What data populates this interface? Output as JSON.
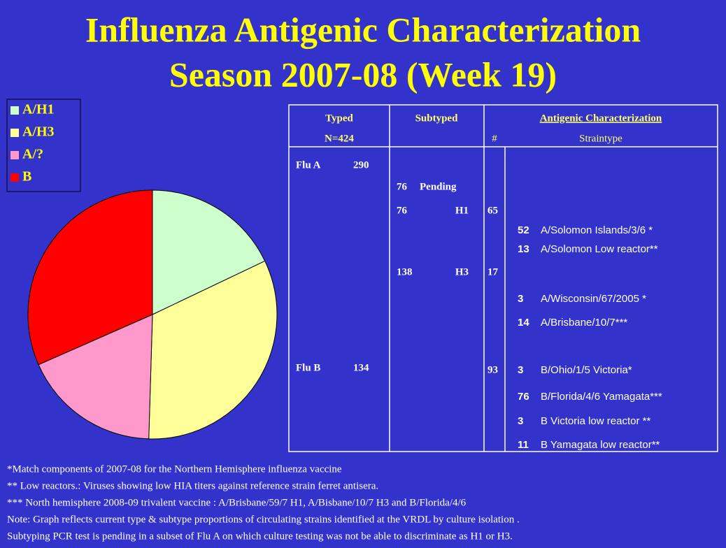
{
  "chart_data": {
    "type": "pie",
    "title": [
      "Influenza Antigenic Characterization",
      "Season 2007-08 (Week 19)"
    ],
    "categories": [
      "A/H1",
      "A/H3",
      "A/?",
      "B"
    ],
    "values": [
      76,
      138,
      76,
      134
    ],
    "colors": [
      "#ccffcc",
      "#ffff99",
      "#ff99cc",
      "#ff0000"
    ]
  },
  "table": {
    "header": {
      "typed": "Typed",
      "n": "N=424",
      "subtyped": "Subtyped",
      "antigenic": "Antigenic Characterization",
      "count": "#",
      "straintype": "Straintype"
    },
    "typed": [
      {
        "label": "Flu A",
        "count": 290
      },
      {
        "label": "Flu B",
        "count": 134
      }
    ],
    "subtyped": [
      {
        "count": 76,
        "label": "Pending"
      },
      {
        "count": 76,
        "label": "H1"
      },
      {
        "count": 138,
        "label": "H3"
      }
    ],
    "characterized": [
      65,
      17,
      93
    ],
    "strains": [
      {
        "count": 52,
        "label": "A/Solomon Islands/3/6 *"
      },
      {
        "count": 13,
        "label": "A/Solomon Low reactor**"
      },
      {
        "count": 3,
        "label": "A/Wisconsin/67/2005 *"
      },
      {
        "count": 14,
        "label": "A/Brisbane/10/7***"
      },
      {
        "count": 3,
        "label": "B/Ohio/1/5 Victoria*"
      },
      {
        "count": 76,
        "label": "B/Florida/4/6 Yamagata***"
      },
      {
        "count": 3,
        "label": "B Victoria low reactor **"
      },
      {
        "count": 11,
        "label": "B Yamagata low reactor**"
      }
    ]
  },
  "notes": [
    "*Match components of 2007-08 for the Northern Hemisphere influenza vaccine",
    "** Low reactors.: Viruses showing low HIA titers against reference strain ferret antisera.",
    "*** North hemisphere  2008-09  trivalent vaccine : A/Brisbane/59/7 H1, A/Bisbane/10/7 H3 and B/Florida/4/6",
    "Note: Graph reflects current  type & subtype proportions of circulating strains identified  at the VRDL by culture isolation .",
    "Subtyping PCR test is pending  in a subset  of  Flu A on which culture testing was not be able to discriminate as H1 or H3."
  ]
}
